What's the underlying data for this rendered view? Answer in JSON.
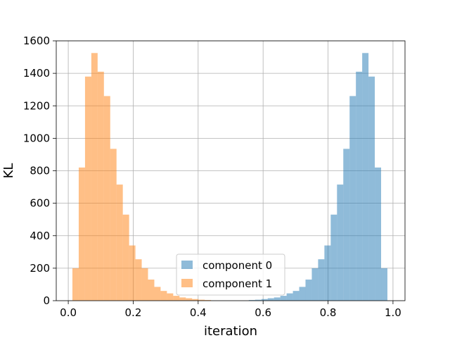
{
  "chart_data": {
    "type": "bar",
    "title": "",
    "xlabel": "iteration",
    "ylabel": "KL",
    "xlim": [
      -0.037,
      1.037
    ],
    "ylim": [
      0,
      1600
    ],
    "xticks": [
      "0.0",
      "0.2",
      "0.4",
      "0.6",
      "0.8",
      "1.0"
    ],
    "xtick_values": [
      0.0,
      0.2,
      0.4,
      0.6,
      0.8,
      1.0
    ],
    "yticks": [
      "0",
      "200",
      "400",
      "600",
      "800",
      "1000",
      "1200",
      "1400",
      "1600"
    ],
    "ytick_values": [
      0,
      200,
      400,
      600,
      800,
      1000,
      1200,
      1400,
      1600
    ],
    "grid": true,
    "legend_position": "lower-center",
    "bin_edges": [
      0.0128,
      0.0322,
      0.0516,
      0.071,
      0.0904,
      0.1098,
      0.1292,
      0.1486,
      0.168,
      0.1874,
      0.2068,
      0.2262,
      0.2456,
      0.265,
      0.2844,
      0.3038,
      0.3232,
      0.3426,
      0.362,
      0.3814,
      0.4008,
      0.4202,
      0.4396,
      0.459,
      0.4784,
      0.4978,
      0.5172,
      0.5366,
      0.556,
      0.5754,
      0.5948,
      0.6142,
      0.6336,
      0.653,
      0.6724,
      0.6918,
      0.7112,
      0.7306,
      0.75,
      0.7694,
      0.7888,
      0.8082,
      0.8276,
      0.847,
      0.8664,
      0.8858,
      0.9052,
      0.9246,
      0.944,
      0.9634,
      0.9828
    ],
    "series": [
      {
        "name": "component 0",
        "color": "#1f77b4",
        "opacity": 0.5,
        "values": [
          0,
          0,
          0,
          0,
          0,
          0,
          0,
          0,
          0,
          0,
          0,
          0,
          0,
          0,
          0,
          0,
          0,
          0,
          0,
          0,
          0,
          0,
          0,
          0,
          0,
          0,
          0,
          0,
          4,
          6,
          10,
          15,
          20,
          30,
          45,
          60,
          85,
          130,
          200,
          255,
          340,
          530,
          715,
          935,
          1260,
          1410,
          1525,
          1380,
          820,
          200
        ]
      },
      {
        "name": "component 1",
        "color": "#ff7f0e",
        "opacity": 0.5,
        "values": [
          200,
          820,
          1380,
          1525,
          1410,
          1260,
          935,
          715,
          530,
          340,
          255,
          200,
          130,
          85,
          60,
          45,
          30,
          20,
          15,
          10,
          6,
          4,
          0,
          0,
          0,
          0,
          0,
          0,
          0,
          0,
          0,
          0,
          0,
          0,
          0,
          0,
          0,
          0,
          0,
          0,
          0,
          0,
          0,
          0,
          0,
          0,
          0,
          0,
          0,
          0
        ]
      }
    ]
  }
}
